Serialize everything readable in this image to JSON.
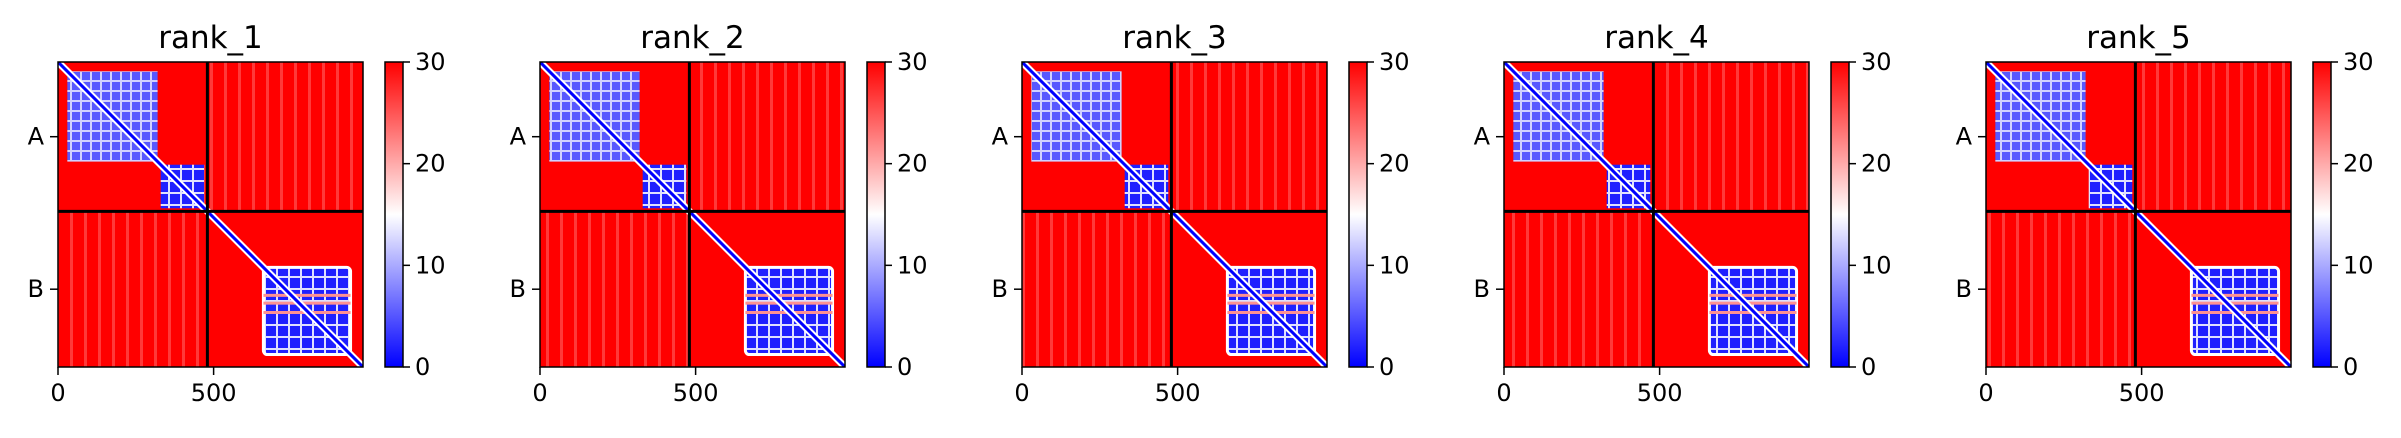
{
  "chart_data": {
    "type": "heatmap",
    "layout": "5 panels in one row",
    "colormap": {
      "low": "#0000ff",
      "mid": "#ffffff",
      "high": "#ff0000"
    },
    "colorbar": {
      "range": [
        0,
        30
      ],
      "ticks": [
        "0",
        "10",
        "20",
        "30"
      ]
    },
    "x_range": [
      0,
      980
    ],
    "x_ticks": [
      {
        "value": 0,
        "label": "0"
      },
      {
        "value": 500,
        "label": "500"
      }
    ],
    "chain_boundary": 480,
    "chains": [
      {
        "name": "A",
        "start": 0,
        "end": 480
      },
      {
        "name": "B",
        "start": 480,
        "end": 980
      }
    ],
    "panels": [
      {
        "title": "rank_1"
      },
      {
        "title": "rank_2"
      },
      {
        "title": "rank_3"
      },
      {
        "title": "rank_4"
      },
      {
        "title": "rank_5"
      }
    ]
  }
}
